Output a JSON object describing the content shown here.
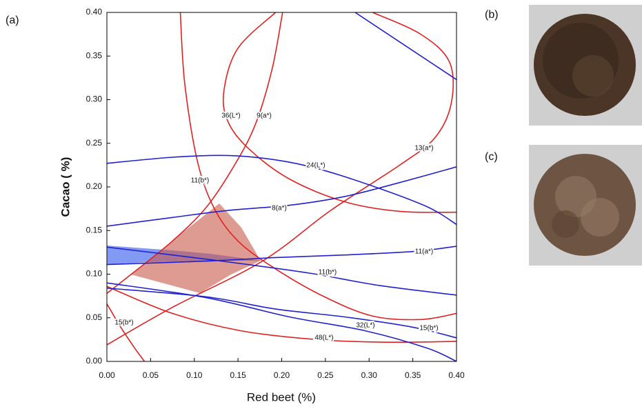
{
  "panels": {
    "a": "(a)",
    "b": "(b)",
    "c": "(c)"
  },
  "chart_data": {
    "type": "contour",
    "xlabel": "Red beet (%)",
    "ylabel": "Cacao ( %)",
    "xlim": [
      0,
      0.4
    ],
    "ylim": [
      0,
      0.4
    ],
    "xticks": [
      {
        "value": 0,
        "label": "0.00"
      },
      {
        "value": 0.05,
        "label": "0.05"
      },
      {
        "value": 0.1,
        "label": "0.10"
      },
      {
        "value": 0.15,
        "label": "0.15"
      },
      {
        "value": 0.2,
        "label": "0.20"
      },
      {
        "value": 0.25,
        "label": "0.25"
      },
      {
        "value": 0.3,
        "label": "0.30"
      },
      {
        "value": 0.35,
        "label": "0.35"
      },
      {
        "value": 0.4,
        "label": "0.40"
      }
    ],
    "yticks": [
      {
        "value": 0,
        "label": "0.00"
      },
      {
        "value": 0.05,
        "label": "0.05"
      },
      {
        "value": 0.1,
        "label": "0.10"
      },
      {
        "value": 0.15,
        "label": "0.15"
      },
      {
        "value": 0.2,
        "label": "0.20"
      },
      {
        "value": 0.25,
        "label": "0.25"
      },
      {
        "value": 0.3,
        "label": "0.30"
      },
      {
        "value": 0.35,
        "label": "0.35"
      },
      {
        "value": 0.4,
        "label": "0.40"
      }
    ],
    "series": [
      {
        "name": "36(L*)",
        "color": "#e02020",
        "x": [
          0.084,
          0.089,
          0.103,
          0.122,
          0.15,
          0.193,
          0.249,
          0.304,
          0.359,
          0.4
        ],
        "y": [
          0.4,
          0.319,
          0.232,
          0.177,
          0.138,
          0.106,
          0.074,
          0.052,
          0.048,
          0.055
        ]
      },
      {
        "name": "9(a*)",
        "color": "#e02020",
        "x": [
          0.193,
          0.15,
          0.134,
          0.138,
          0.162,
          0.209,
          0.272,
          0.335,
          0.4
        ],
        "y": [
          0.4,
          0.359,
          0.311,
          0.276,
          0.244,
          0.209,
          0.183,
          0.172,
          0.171
        ]
      },
      {
        "name": "13(a*)",
        "color": "#e02020",
        "x": [
          0,
          0.075,
          0.178,
          0.256,
          0.335,
          0.375,
          0.394,
          0.392,
          0.359,
          0.304
        ],
        "y": [
          0.019,
          0.062,
          0.115,
          0.173,
          0.225,
          0.256,
          0.296,
          0.343,
          0.375,
          0.4
        ]
      },
      {
        "name": "11(b*)",
        "color": "#e02020",
        "x": [
          0,
          0.028,
          0.075,
          0.114,
          0.146,
          0.17,
          0.189,
          0.201
        ],
        "y": [
          0.078,
          0.1,
          0.138,
          0.177,
          0.225,
          0.272,
          0.335,
          0.4
        ]
      },
      {
        "name": "48(L*)",
        "color": "#e02020",
        "x": [
          0,
          0.075,
          0.154,
          0.241,
          0.32,
          0.4
        ],
        "y": [
          0.086,
          0.055,
          0.035,
          0.025,
          0.022,
          0.023
        ]
      },
      {
        "name": "15(b*)",
        "color": "#e02020",
        "x": [
          0,
          0.016,
          0.032,
          0.043
        ],
        "y": [
          0.066,
          0.039,
          0.015,
          0
        ]
      },
      {
        "name": "24(L*)",
        "color": "#2020d0",
        "x": [
          0,
          0.075,
          0.138,
          0.193,
          0.241,
          0.304,
          0.367,
          0.4
        ],
        "y": [
          0.227,
          0.234,
          0.236,
          0.231,
          0.221,
          0.201,
          0.177,
          0.157
        ]
      },
      {
        "name": "8(a*)",
        "color": "#2020d0",
        "x": [
          0,
          0.075,
          0.138,
          0.209,
          0.272,
          0.335,
          0.4
        ],
        "y": [
          0.155,
          0.165,
          0.173,
          0.179,
          0.189,
          0.205,
          0.223
        ]
      },
      {
        "name": "11(a*)",
        "color": "#2020d0",
        "x": [
          0,
          0.114,
          0.193,
          0.272,
          0.351,
          0.4
        ],
        "y": [
          0.111,
          0.115,
          0.119,
          0.122,
          0.126,
          0.132
        ]
      },
      {
        "name": "11(b*)",
        "color": "#2020d0",
        "x": [
          0,
          0.075,
          0.154,
          0.233,
          0.312,
          0.4
        ],
        "y": [
          0.131,
          0.122,
          0.112,
          0.101,
          0.087,
          0.076
        ]
      },
      {
        "name": "32(L*)",
        "color": "#2020d0",
        "x": [
          0,
          0.114,
          0.209,
          0.296,
          0.367,
          0.4
        ],
        "y": [
          0.09,
          0.073,
          0.051,
          0.035,
          0.015,
          0
        ]
      },
      {
        "name": "15(b*)",
        "color": "#2020d0",
        "x": [
          0,
          0.114,
          0.193,
          0.272,
          0.351,
          0.4
        ],
        "y": [
          0.084,
          0.074,
          0.06,
          0.051,
          0.039,
          0.027
        ]
      },
      {
        "color": "#2020d0",
        "x": [
          0.284,
          0.4
        ],
        "y": [
          0.4,
          0.323
        ]
      }
    ]
  }
}
